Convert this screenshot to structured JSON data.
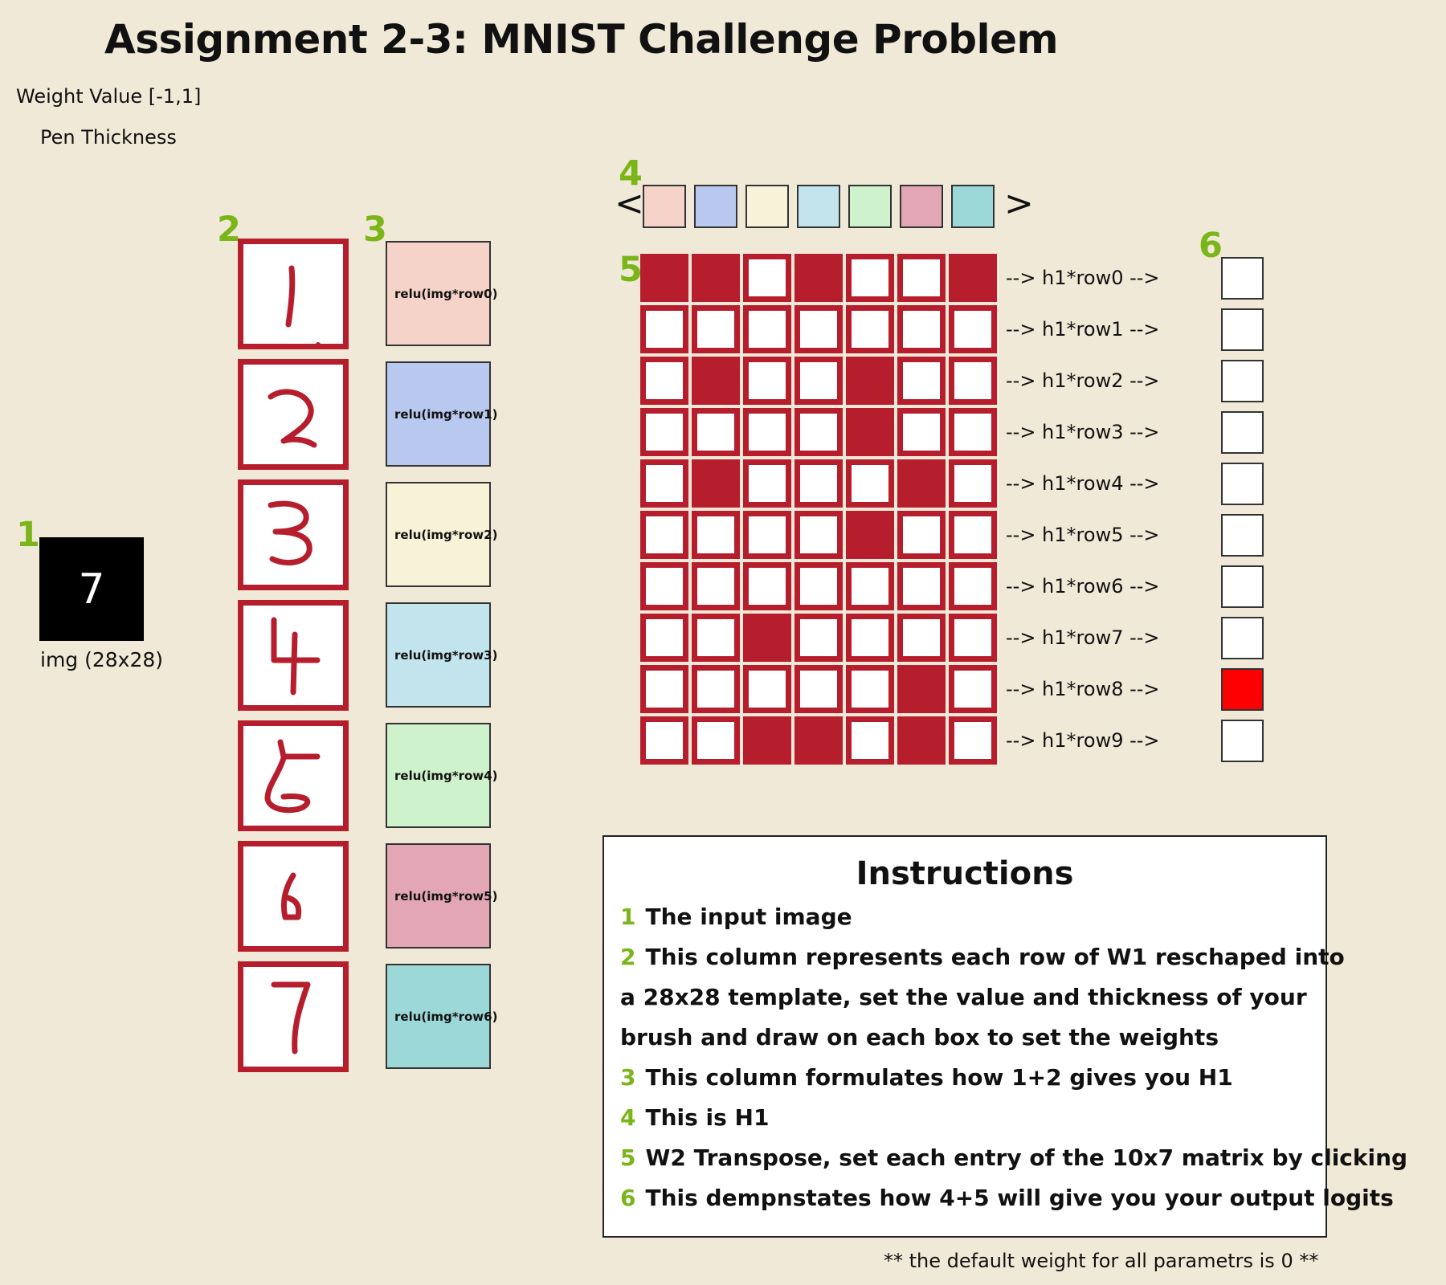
{
  "title": "Assignment 2-3: MNIST Challenge Problem",
  "controls": {
    "weight_value_label": "Weight Value [-1,1]",
    "pen_thickness_label": "Pen Thickness"
  },
  "markers": [
    "1",
    "2",
    "3",
    "4",
    "5",
    "6"
  ],
  "input_image": {
    "digit": "7",
    "label": "img (28x28)"
  },
  "templates": [
    "1",
    "2",
    "3",
    "4",
    "5",
    "6",
    "7"
  ],
  "relu_labels": [
    "relu(img*row0)",
    "relu(img*row1)",
    "relu(img*row2)",
    "relu(img*row3)",
    "relu(img*row4)",
    "relu(img*row5)",
    "relu(img*row6)"
  ],
  "colors": {
    "background": "#f1e9d7",
    "accent_red": "#b61e2e",
    "marker_green": "#7ab519",
    "h1": [
      "#f5d3c8",
      "#b8c8ee",
      "#f7f2d8",
      "#c2e4ed",
      "#cef2cc",
      "#e2a6b4",
      "#9dd8d8"
    ],
    "output_active": "#ff0000"
  },
  "h1_nav": {
    "prev": "<",
    "next": ">"
  },
  "w2_matrix": [
    [
      1,
      1,
      0,
      1,
      0,
      0,
      1
    ],
    [
      0,
      0,
      0,
      0,
      0,
      0,
      0
    ],
    [
      0,
      1,
      0,
      0,
      1,
      0,
      0
    ],
    [
      0,
      0,
      0,
      0,
      1,
      0,
      0
    ],
    [
      0,
      1,
      0,
      0,
      0,
      1,
      0
    ],
    [
      0,
      0,
      0,
      0,
      1,
      0,
      0
    ],
    [
      0,
      0,
      0,
      0,
      0,
      0,
      0
    ],
    [
      0,
      0,
      1,
      0,
      0,
      0,
      0
    ],
    [
      0,
      0,
      0,
      0,
      0,
      1,
      0
    ],
    [
      0,
      0,
      1,
      1,
      0,
      1,
      0
    ]
  ],
  "row_labels": [
    "--> h1*row0 -->",
    "--> h1*row1 -->",
    "--> h1*row2 -->",
    "--> h1*row3 -->",
    "--> h1*row4 -->",
    "--> h1*row5 -->",
    "--> h1*row6 -->",
    "--> h1*row7 -->",
    "--> h1*row8 -->",
    "--> h1*row9 -->"
  ],
  "output_active_index": 8,
  "instructions": {
    "title": "Instructions",
    "lines": [
      {
        "num": "1",
        "text": "The input image"
      },
      {
        "num": "2",
        "text": "This column represents each row of W1 reschaped into"
      },
      {
        "num": "",
        "text": "a 28x28 template, set the value and thickness of your"
      },
      {
        "num": "",
        "text": "brush and draw on each box to set the weights"
      },
      {
        "num": "3",
        "text": "This column formulates how 1+2 gives you H1"
      },
      {
        "num": "4",
        "text": "This is H1"
      },
      {
        "num": "5",
        "text": "W2 Transpose, set each entry of the 10x7 matrix by clicking"
      },
      {
        "num": "6",
        "text": "This dempnstates how 4+5 will give you your output logits"
      }
    ]
  },
  "footnote": "** the default weight for all parametrs is 0 **"
}
